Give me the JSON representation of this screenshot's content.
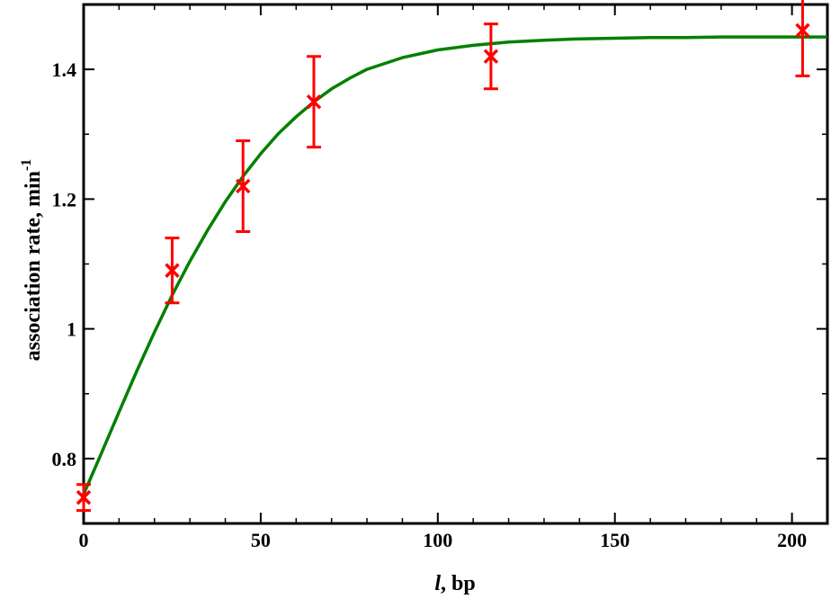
{
  "chart_data": {
    "type": "scatter",
    "title": "",
    "xlabel_italic": "l",
    "xlabel_rest": ", bp",
    "ylabel_main": "association rate, min",
    "ylabel_sup": "-1",
    "xlim": [
      0,
      210
    ],
    "ylim": [
      0.7,
      1.5
    ],
    "x_ticks": [
      0,
      50,
      100,
      150,
      200
    ],
    "x_tick_labels": [
      "0",
      "50",
      "100",
      "150",
      "200"
    ],
    "y_ticks": [
      0.8,
      1.0,
      1.2,
      1.4
    ],
    "y_tick_labels": [
      "0.8",
      "1",
      "1.2",
      "1.4"
    ],
    "grid": false,
    "series": [
      {
        "kind": "points",
        "color": "#ff0000",
        "x": [
          0,
          25,
          45,
          65,
          115,
          203
        ],
        "y": [
          0.74,
          1.09,
          1.22,
          1.35,
          1.42,
          1.46
        ],
        "err": [
          0.02,
          0.05,
          0.07,
          0.07,
          0.05,
          0.07
        ]
      },
      {
        "kind": "fit-curve",
        "color": "#008000",
        "x": [
          0,
          5,
          10,
          15,
          20,
          25,
          30,
          35,
          40,
          45,
          50,
          55,
          60,
          65,
          70,
          75,
          80,
          90,
          100,
          110,
          120,
          130,
          140,
          150,
          160,
          170,
          180,
          190,
          200,
          210
        ],
        "y": [
          0.745,
          0.808,
          0.872,
          0.935,
          0.995,
          1.052,
          1.104,
          1.152,
          1.196,
          1.235,
          1.27,
          1.301,
          1.327,
          1.35,
          1.37,
          1.386,
          1.4,
          1.418,
          1.43,
          1.437,
          1.442,
          1.445,
          1.447,
          1.448,
          1.449,
          1.449,
          1.45,
          1.45,
          1.45,
          1.45
        ]
      }
    ]
  }
}
